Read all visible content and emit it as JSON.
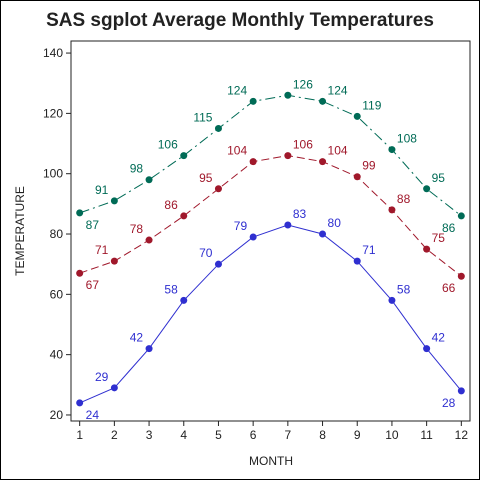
{
  "chart_data": {
    "type": "line",
    "title": "SAS sgplot Average Monthly Temperatures",
    "xlabel": "MONTH",
    "ylabel": "TEMPERATURE",
    "x": [
      1,
      2,
      3,
      4,
      5,
      6,
      7,
      8,
      9,
      10,
      11,
      12
    ],
    "xlim": [
      0.75,
      12.25
    ],
    "ylim": [
      18,
      144
    ],
    "xticks": [
      1,
      2,
      3,
      4,
      5,
      6,
      7,
      8,
      9,
      10,
      11,
      12
    ],
    "yticks": [
      20,
      40,
      60,
      80,
      100,
      120,
      140
    ],
    "grid": false,
    "legend": "none",
    "series": [
      {
        "color": "#2f2fd0",
        "line_style": "solid",
        "values": [
          24,
          29,
          42,
          58,
          70,
          79,
          83,
          80,
          71,
          58,
          42,
          28
        ]
      },
      {
        "color": "#a0182b",
        "line_style": "dashed",
        "values": [
          67,
          71,
          78,
          86,
          95,
          104,
          106,
          104,
          99,
          88,
          75,
          66
        ]
      },
      {
        "color": "#006b56",
        "line_style": "dash-dot",
        "values": [
          87,
          91,
          98,
          106,
          115,
          124,
          126,
          124,
          119,
          108,
          95,
          86
        ]
      }
    ]
  }
}
